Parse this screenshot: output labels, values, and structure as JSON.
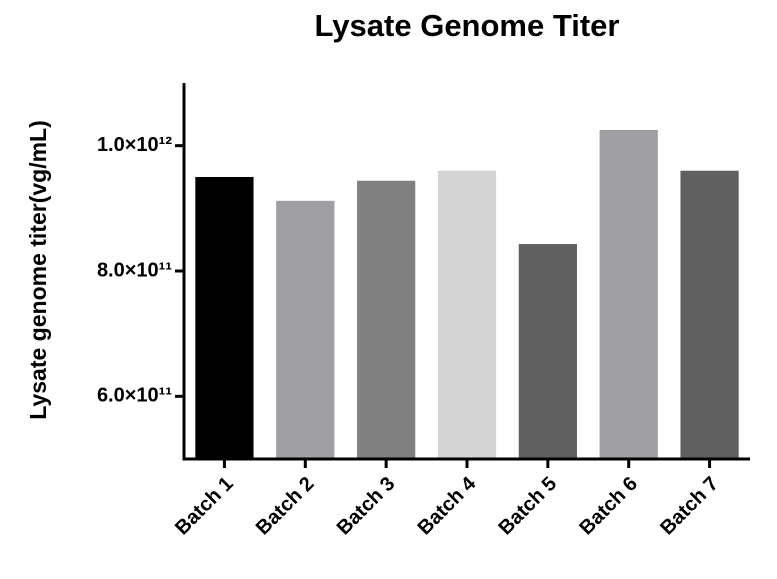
{
  "chart_data": {
    "type": "bar",
    "title": "Lysate Genome Titer",
    "y_label": "Lysate genome titer(vg/mL)",
    "categories": [
      "Batch 1",
      "Batch 2",
      "Batch 3",
      "Batch 4",
      "Batch 5",
      "Batch 6",
      "Batch 7"
    ],
    "values": [
      950000000000,
      912000000000,
      944000000000,
      960000000000,
      843000000000,
      1025000000000,
      960000000000
    ],
    "colors": [
      "#000000",
      "#a0a0a4",
      "#808080",
      "#d4d4d4",
      "#606060",
      "#a0a0a4",
      "#606060"
    ],
    "ylim": [
      500000000000,
      1100000000000
    ],
    "yticks": [
      {
        "value": 600000000000,
        "label": "6.0×10¹¹"
      },
      {
        "value": 800000000000,
        "label": "8.0×10¹¹"
      },
      {
        "value": 1000000000000,
        "label": "1.0×10¹²"
      }
    ]
  }
}
